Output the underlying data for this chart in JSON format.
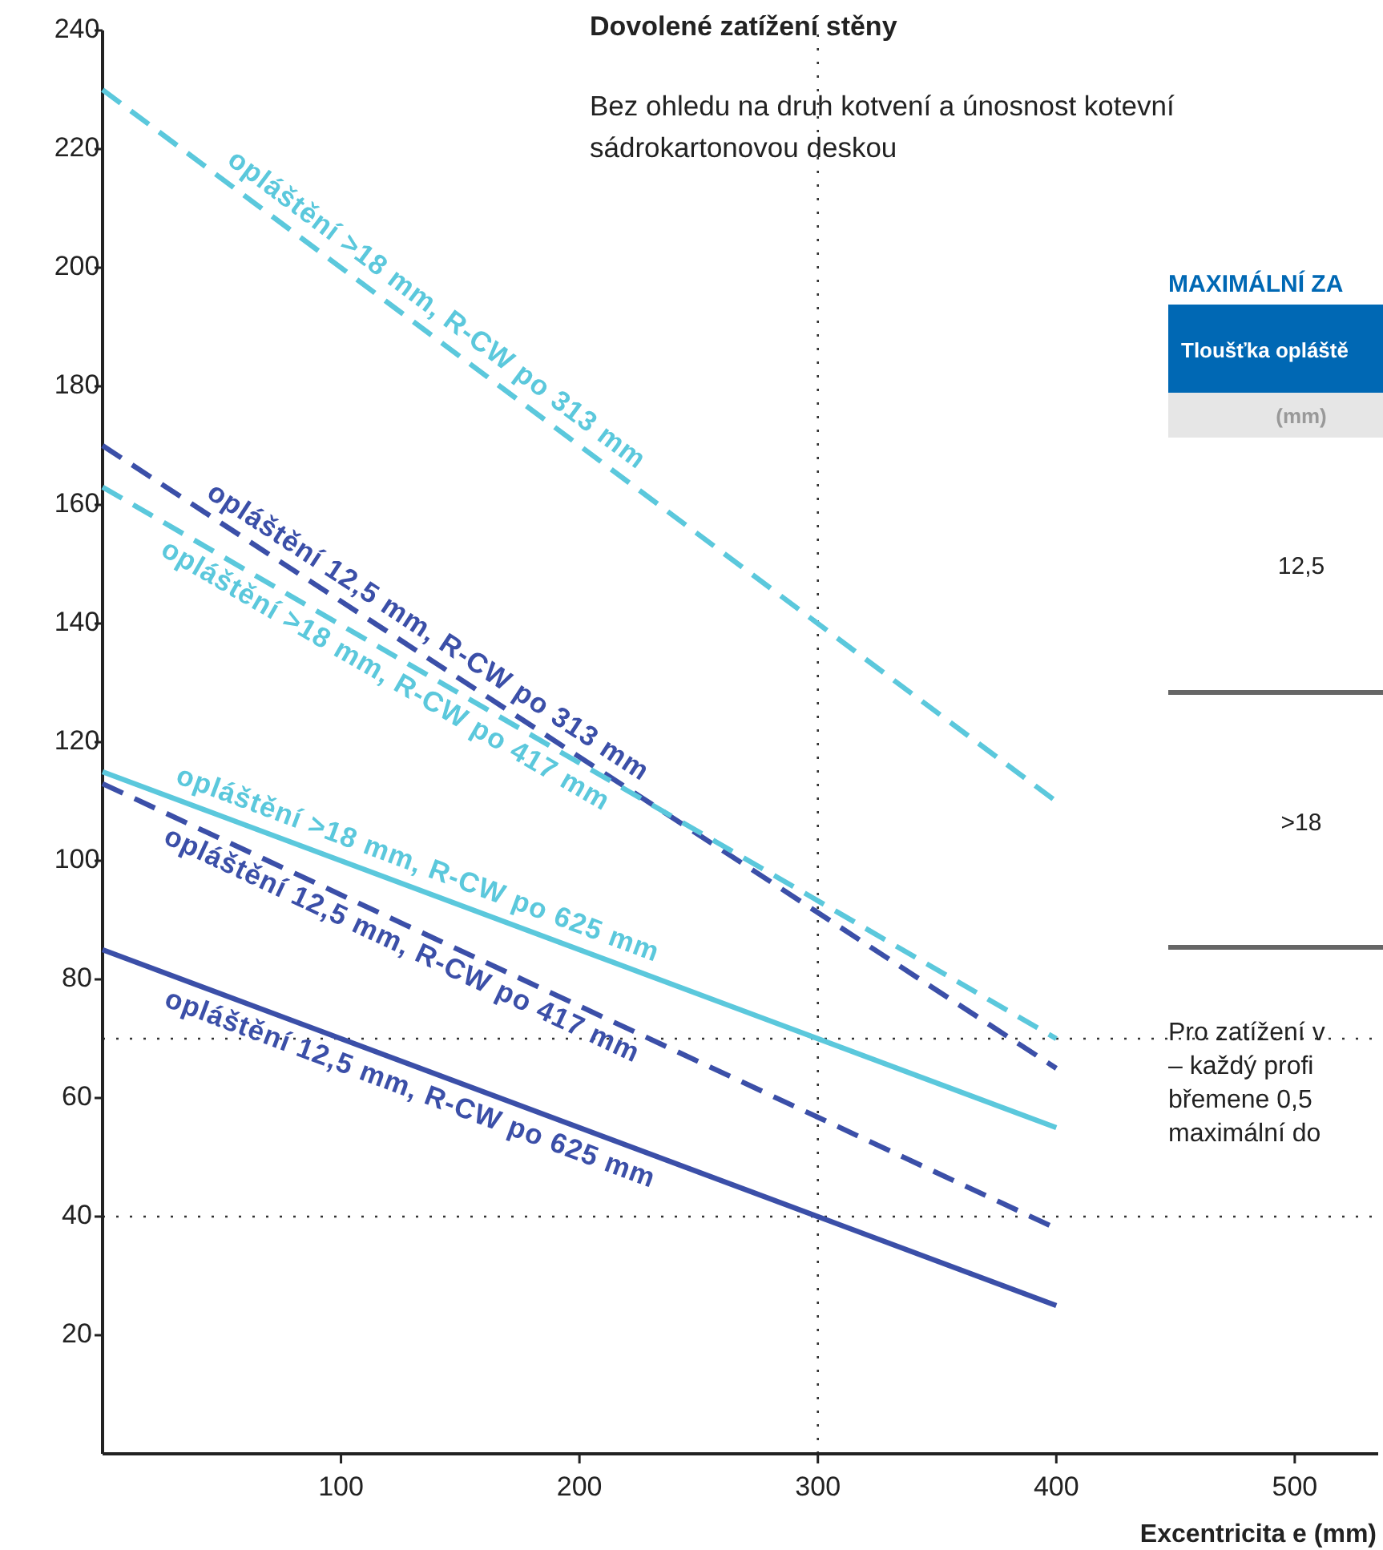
{
  "chart_data": {
    "type": "line",
    "title": "Dovolené zatížení stěny",
    "subtitle": "Bez ohledu na druh kotvení a únosnost kotevní\nsádrokartonovou deskou",
    "xlabel": "Excentricita e (mm)",
    "x": [
      0,
      400
    ],
    "series": [
      {
        "name": "opláštění >18 mm, R-CW po  313 mm",
        "color": "#5bc8dc",
        "line_style": "dashed",
        "values": [
          230,
          110
        ]
      },
      {
        "name": "opláštění 12,5 mm, R-CW po 313 mm",
        "color": "#3b4fa8",
        "line_style": "dashed",
        "values": [
          170,
          65
        ]
      },
      {
        "name": "opláštění >18 mm, R-CW po 417 mm",
        "color": "#5bc8dc",
        "line_style": "dashed",
        "values": [
          163,
          70
        ]
      },
      {
        "name": "opláštění >18 mm, R-CW po 625 mm",
        "color": "#5bc8dc",
        "line_style": "solid",
        "values": [
          115,
          55
        ]
      },
      {
        "name": "opláštění 12,5 mm, R-CW po 417 mm",
        "color": "#3b4fa8",
        "line_style": "dashed",
        "values": [
          113,
          38
        ]
      },
      {
        "name": "opláštění 12,5 mm, R-CW po 625 mm",
        "color": "#3b4fa8",
        "line_style": "solid",
        "values": [
          85,
          25
        ]
      }
    ],
    "xlim": [
      0,
      535
    ],
    "ylim": [
      0,
      240
    ],
    "xticks": [
      100,
      200,
      300,
      400,
      500
    ],
    "yticks": [
      20,
      40,
      60,
      80,
      100,
      120,
      140,
      160,
      180,
      200,
      220,
      240
    ],
    "ref_lines": [
      {
        "axis": "x",
        "value": 300,
        "line_style": "dotted"
      },
      {
        "axis": "y",
        "value": 70,
        "line_style": "dotted"
      },
      {
        "axis": "y",
        "value": 40,
        "line_style": "dotted"
      }
    ],
    "grid": false,
    "marker": "none",
    "annotations": [
      "MAXIMÁLNÍ ZA",
      "Tloušťka opláště",
      "(mm)",
      "12,5",
      ">18",
      "Pro zatížení v",
      "– každý profi",
      "břemene 0,5",
      "maximální do"
    ]
  }
}
